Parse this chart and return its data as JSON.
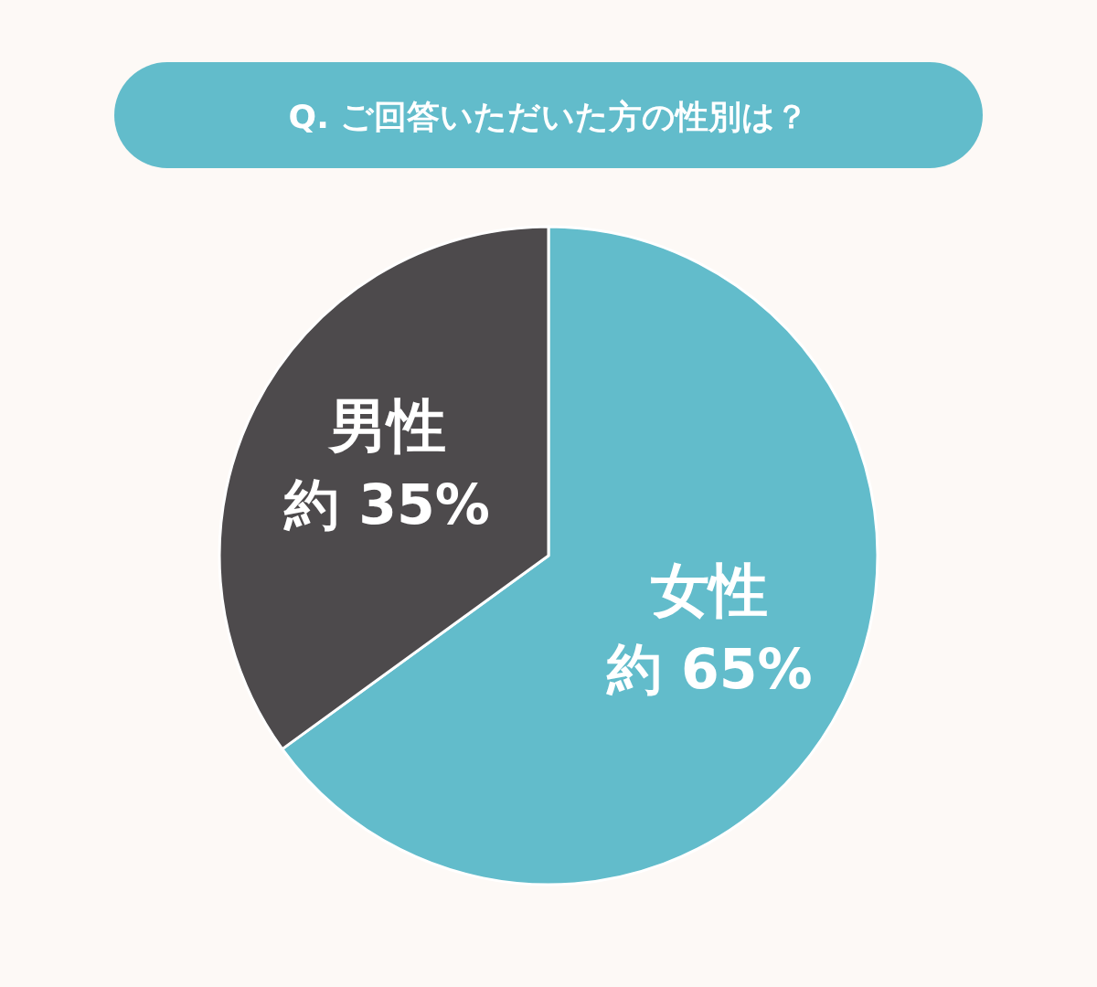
{
  "chart_data": {
    "type": "pie",
    "title": "Q. ご回答いただいた方の性別は？",
    "categories": [
      "女性",
      "男性"
    ],
    "values": [
      65,
      35
    ],
    "colors": [
      "#62bccb",
      "#4d4a4c"
    ],
    "value_labels": [
      "約 65%",
      "約 35%"
    ]
  }
}
